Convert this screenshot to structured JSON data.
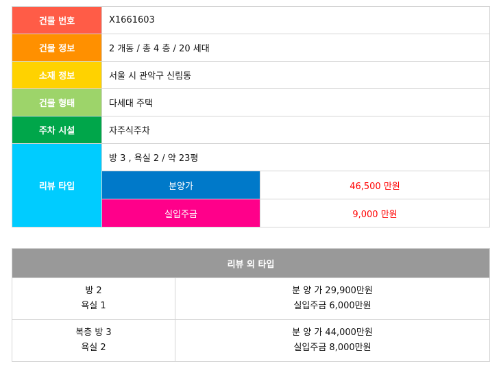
{
  "building": {
    "rows": [
      {
        "label": "건물 번호",
        "value": "X1661603",
        "color": "#ff5c47"
      },
      {
        "label": "건물 정보",
        "value": "2 개동 / 총 4 층 / 20 세대",
        "color": "#ff9000"
      },
      {
        "label": "소재 정보",
        "value": "서울 시 관악구 신림동",
        "color": "#ffd200"
      },
      {
        "label": "건물 형태",
        "value": "다세대 주택",
        "color": "#9dd46a"
      },
      {
        "label": "주차 시설",
        "value": "자주식주차",
        "color": "#00a64a"
      }
    ],
    "review": {
      "label": "리뷰 타입",
      "color": "#00ccff",
      "value": "방 3 , 욕실 2 / 약 23평",
      "price_label": "분양가",
      "price_color": "#0079c9",
      "price": "46,500 만원",
      "deposit_label": "실입주금",
      "deposit_color": "#ff008a",
      "deposit": "9,000 만원"
    }
  },
  "other": {
    "title": "리뷰 외 타입",
    "rows": [
      {
        "type": [
          "방 2",
          "욕실 1"
        ],
        "price": [
          "분 양 가 29,900만원",
          "실입주금 6,000만원"
        ]
      },
      {
        "type": [
          "복층 방 3",
          "욕실 2"
        ],
        "price": [
          "분 양 가 44,000만원",
          "실입주금 8,000만원"
        ]
      }
    ]
  }
}
